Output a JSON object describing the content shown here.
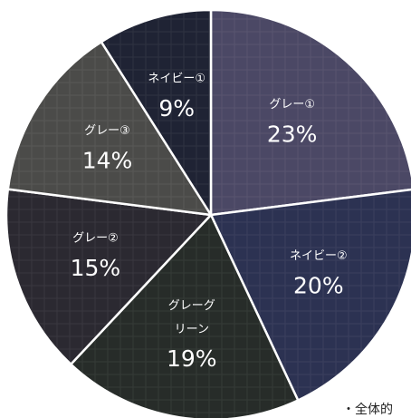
{
  "chart_data": {
    "type": "pie",
    "categories": [
      "グレー①",
      "ネイビー②",
      "グレーグリーン",
      "グレー②",
      "グレー③",
      "ネイビー①"
    ],
    "values": [
      23,
      20,
      19,
      15,
      14,
      9
    ],
    "value_labels": [
      "23%",
      "20%",
      "19%",
      "15%",
      "14%",
      "9%"
    ],
    "colors": [
      "#4b4865",
      "#2c3252",
      "#272c29",
      "#2b2931",
      "#4b4b49",
      "#1f2334"
    ],
    "note": "・全体的"
  }
}
